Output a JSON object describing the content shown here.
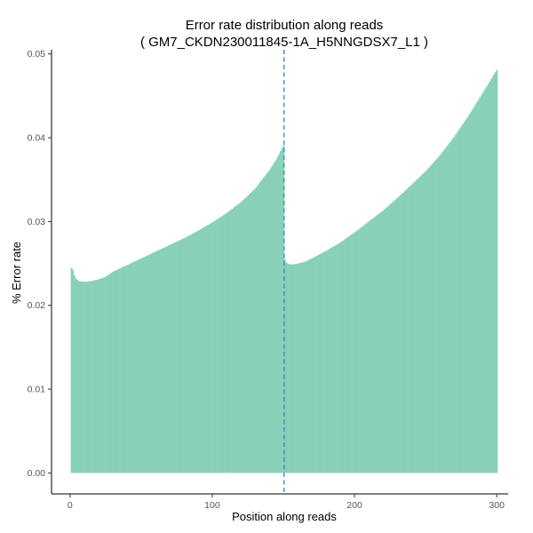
{
  "chart_data": {
    "type": "bar",
    "title_line1": "Error rate distribution along reads",
    "title_line2": "( GM7_CKDN230011845-1A_H5NNGDSX7_L1 )",
    "xlabel": "Position along reads",
    "ylabel": "% Error rate",
    "xlim": [
      -13,
      308
    ],
    "ylim": [
      -0.0025,
      0.0505
    ],
    "x_ticks": [
      0,
      100,
      200,
      300
    ],
    "x_tick_labels": [
      "0",
      "100",
      "200",
      "300"
    ],
    "y_ticks": [
      0,
      0.01,
      0.02,
      0.03,
      0.04,
      0.05
    ],
    "y_tick_labels": [
      "0.00",
      "0.01",
      "0.02",
      "0.03",
      "0.04",
      "0.05"
    ],
    "grid": false,
    "legend": "none",
    "bar_color": "#88d1b8",
    "vline": {
      "x": 150.5,
      "color": "#3a85c4",
      "style": "dashed"
    },
    "read1_keypoints": [
      [
        1,
        0.0245
      ],
      [
        2,
        0.0242
      ],
      [
        3,
        0.0236
      ],
      [
        4,
        0.0232
      ],
      [
        6,
        0.0229
      ],
      [
        10,
        0.0228
      ],
      [
        15,
        0.0229
      ],
      [
        20,
        0.0231
      ],
      [
        25,
        0.0234
      ],
      [
        30,
        0.024
      ],
      [
        40,
        0.0248
      ],
      [
        50,
        0.0256
      ],
      [
        60,
        0.0264
      ],
      [
        70,
        0.0272
      ],
      [
        80,
        0.028
      ],
      [
        90,
        0.0289
      ],
      [
        100,
        0.0299
      ],
      [
        110,
        0.031
      ],
      [
        120,
        0.0323
      ],
      [
        130,
        0.0339
      ],
      [
        140,
        0.0361
      ],
      [
        145,
        0.0374
      ],
      [
        150,
        0.0391
      ]
    ],
    "read2_keypoints": [
      [
        151,
        0.0255
      ],
      [
        152,
        0.0251
      ],
      [
        154,
        0.0249
      ],
      [
        158,
        0.0249
      ],
      [
        165,
        0.0252
      ],
      [
        170,
        0.0256
      ],
      [
        180,
        0.0265
      ],
      [
        190,
        0.0275
      ],
      [
        200,
        0.0287
      ],
      [
        210,
        0.03
      ],
      [
        220,
        0.0313
      ],
      [
        230,
        0.0328
      ],
      [
        240,
        0.0344
      ],
      [
        250,
        0.036
      ],
      [
        260,
        0.0379
      ],
      [
        270,
        0.0401
      ],
      [
        280,
        0.0426
      ],
      [
        290,
        0.0453
      ],
      [
        295,
        0.0467
      ],
      [
        300,
        0.0481
      ]
    ]
  }
}
